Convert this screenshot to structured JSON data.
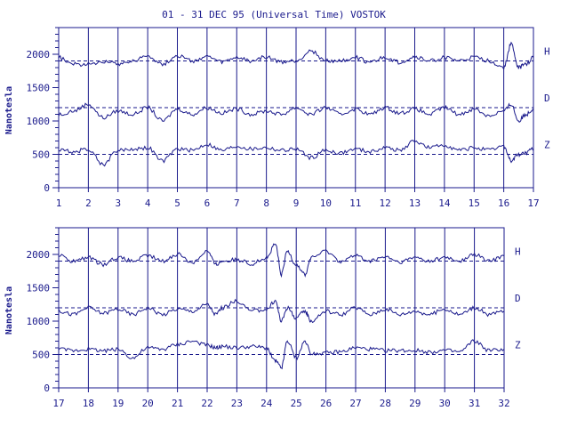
{
  "chart_data": {
    "type": "line",
    "title": "01 - 31 DEC 95 (Universal Time) VOSTOK",
    "ylabel": "Nanotesla",
    "ylim": [
      0,
      2400
    ],
    "y_ticks": [
      "0",
      "500",
      "1000",
      "1500",
      "2000"
    ],
    "baselines": {
      "H": 1900,
      "D": 1200,
      "Z": 500
    },
    "color": "#1a1a8c",
    "panels": [
      {
        "x_ticks": [
          "1",
          "2",
          "3",
          "4",
          "5",
          "6",
          "7",
          "8",
          "9",
          "10",
          "11",
          "12",
          "13",
          "14",
          "15",
          "16",
          "17"
        ],
        "xlim": [
          1,
          17
        ],
        "series": [
          {
            "name": "H",
            "x": [
              1,
              1.5,
              2,
              2.5,
              3,
              3.5,
              4,
              4.5,
              5,
              5.5,
              6,
              6.5,
              7,
              7.5,
              8,
              8.5,
              9,
              9.5,
              10,
              10.5,
              11,
              11.5,
              12,
              12.5,
              13,
              13.5,
              14,
              14.5,
              15,
              15.5,
              16,
              16.25,
              16.5,
              16.75,
              17
            ],
            "y": [
              1950,
              1850,
              1850,
              1900,
              1860,
              1900,
              1980,
              1850,
              1980,
              1900,
              1960,
              1880,
              1950,
              1900,
              1960,
              1880,
              1900,
              2050,
              1900,
              1900,
              1950,
              1880,
              1950,
              1880,
              1960,
              1900,
              1950,
              1900,
              1950,
              1900,
              1800,
              2150,
              1800,
              1850,
              1950
            ]
          },
          {
            "name": "D",
            "x": [
              1,
              1.5,
              2,
              2.5,
              3,
              3.5,
              4,
              4.5,
              5,
              5.5,
              6,
              6.5,
              7,
              7.5,
              8,
              8.5,
              9,
              9.5,
              10,
              10.5,
              11,
              11.5,
              12,
              12.5,
              13,
              13.5,
              14,
              14.5,
              15,
              15.5,
              16,
              16.25,
              16.5,
              16.75,
              17
            ],
            "y": [
              1100,
              1150,
              1250,
              1050,
              1150,
              1100,
              1200,
              1000,
              1180,
              1100,
              1200,
              1120,
              1180,
              1100,
              1150,
              1100,
              1200,
              1100,
              1200,
              1100,
              1180,
              1100,
              1200,
              1120,
              1180,
              1100,
              1200,
              1100,
              1180,
              1080,
              1150,
              1250,
              1000,
              1100,
              1180
            ]
          },
          {
            "name": "Z",
            "x": [
              1,
              1.5,
              2,
              2.5,
              3,
              3.5,
              4,
              4.5,
              5,
              5.5,
              6,
              6.5,
              7,
              7.5,
              8,
              8.5,
              9,
              9.5,
              10,
              10.5,
              11,
              11.5,
              12,
              12.5,
              13,
              13.5,
              14,
              14.5,
              15,
              15.5,
              16,
              16.25,
              16.5,
              16.75,
              17
            ],
            "y": [
              560,
              540,
              580,
              350,
              560,
              580,
              600,
              400,
              580,
              560,
              650,
              560,
              620,
              580,
              600,
              560,
              580,
              450,
              560,
              520,
              580,
              540,
              600,
              560,
              700,
              600,
              640,
              560,
              600,
              560,
              620,
              400,
              500,
              520,
              580
            ]
          }
        ]
      },
      {
        "x_ticks": [
          "17",
          "18",
          "19",
          "20",
          "21",
          "22",
          "23",
          "24",
          "25",
          "26",
          "27",
          "28",
          "29",
          "30",
          "31",
          "32"
        ],
        "xlim": [
          17,
          32
        ],
        "series": [
          {
            "name": "H",
            "x": [
              17,
              17.5,
              18,
              18.5,
              19,
              19.5,
              20,
              20.5,
              21,
              21.5,
              22,
              22.3,
              22.5,
              23,
              23.5,
              24,
              24.3,
              24.5,
              24.7,
              25,
              25.3,
              25.5,
              26,
              26.5,
              27,
              27.5,
              28,
              28.5,
              29,
              29.5,
              30,
              30.5,
              31,
              31.5,
              32
            ],
            "y": [
              1980,
              1900,
              1950,
              1850,
              1950,
              1900,
              1980,
              1900,
              2000,
              1880,
              2050,
              1850,
              1900,
              1920,
              1860,
              1950,
              2150,
              1700,
              2050,
              1850,
              1700,
              1950,
              2050,
              1900,
              1980,
              1900,
              1960,
              1880,
              1950,
              1900,
              1950,
              1900,
              2000,
              1900,
              1980
            ]
          },
          {
            "name": "D",
            "x": [
              17,
              17.5,
              18,
              18.5,
              19,
              19.5,
              20,
              20.5,
              21,
              21.5,
              22,
              22.3,
              22.5,
              23,
              23.5,
              24,
              24.3,
              24.5,
              24.7,
              25,
              25.3,
              25.5,
              26,
              26.5,
              27,
              27.5,
              28,
              28.5,
              29,
              29.5,
              30,
              30.5,
              31,
              31.5,
              32
            ],
            "y": [
              1150,
              1100,
              1200,
              1120,
              1180,
              1100,
              1200,
              1100,
              1180,
              1150,
              1250,
              1100,
              1200,
              1300,
              1150,
              1180,
              1300,
              1000,
              1200,
              1050,
              1150,
              1000,
              1150,
              1100,
              1200,
              1100,
              1180,
              1100,
              1150,
              1100,
              1180,
              1100,
              1200,
              1100,
              1150
            ]
          },
          {
            "name": "Z",
            "x": [
              17,
              17.5,
              18,
              18.5,
              19,
              19.5,
              20,
              20.5,
              21,
              21.5,
              22,
              22.3,
              22.5,
              23,
              23.5,
              24,
              24.3,
              24.5,
              24.7,
              25,
              25.3,
              25.5,
              26,
              26.5,
              27,
              27.5,
              28,
              28.5,
              29,
              29.5,
              30,
              30.5,
              31,
              31.5,
              32
            ],
            "y": [
              580,
              560,
              580,
              560,
              580,
              450,
              600,
              580,
              650,
              700,
              640,
              600,
              620,
              600,
              620,
              600,
              400,
              300,
              700,
              450,
              700,
              520,
              520,
              540,
              600,
              580,
              560,
              560,
              560,
              540,
              560,
              540,
              700,
              560,
              580
            ]
          }
        ]
      }
    ]
  }
}
